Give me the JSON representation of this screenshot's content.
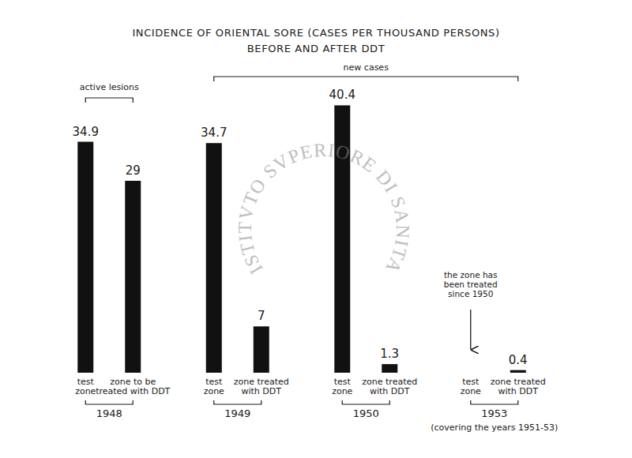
{
  "chart_data": {
    "type": "bar",
    "title": "INCIDENCE OF ORIENTAL SORE (CASES PER THOUSAND PERSONS)",
    "subtitle": "BEFORE AND AFTER DDT",
    "categories": [
      "test\nzone",
      "zone to be\ntreated with DDT",
      "test\nzone",
      "zone treated\nwith DDT",
      "test\nzone",
      "zone treated\nwith DDT",
      "test\nzone",
      "zone treated\nwith DDT"
    ],
    "values": [
      34.9,
      29,
      34.7,
      7,
      40.4,
      1.3,
      null,
      0.4
    ],
    "groups": [
      "1948",
      "1949",
      "1950",
      "1953"
    ],
    "group_note": "(covering the years 1951-53)",
    "annotations": [
      "active lesions",
      "new cases",
      "the zone has\nbeen treated\nsince 1950"
    ],
    "watermark": "ISTITVTO SVPERIORE DI SANITA",
    "color": "#111111",
    "data_labels": true,
    "tick_labels": false,
    "ylim": [
      0,
      42
    ]
  }
}
